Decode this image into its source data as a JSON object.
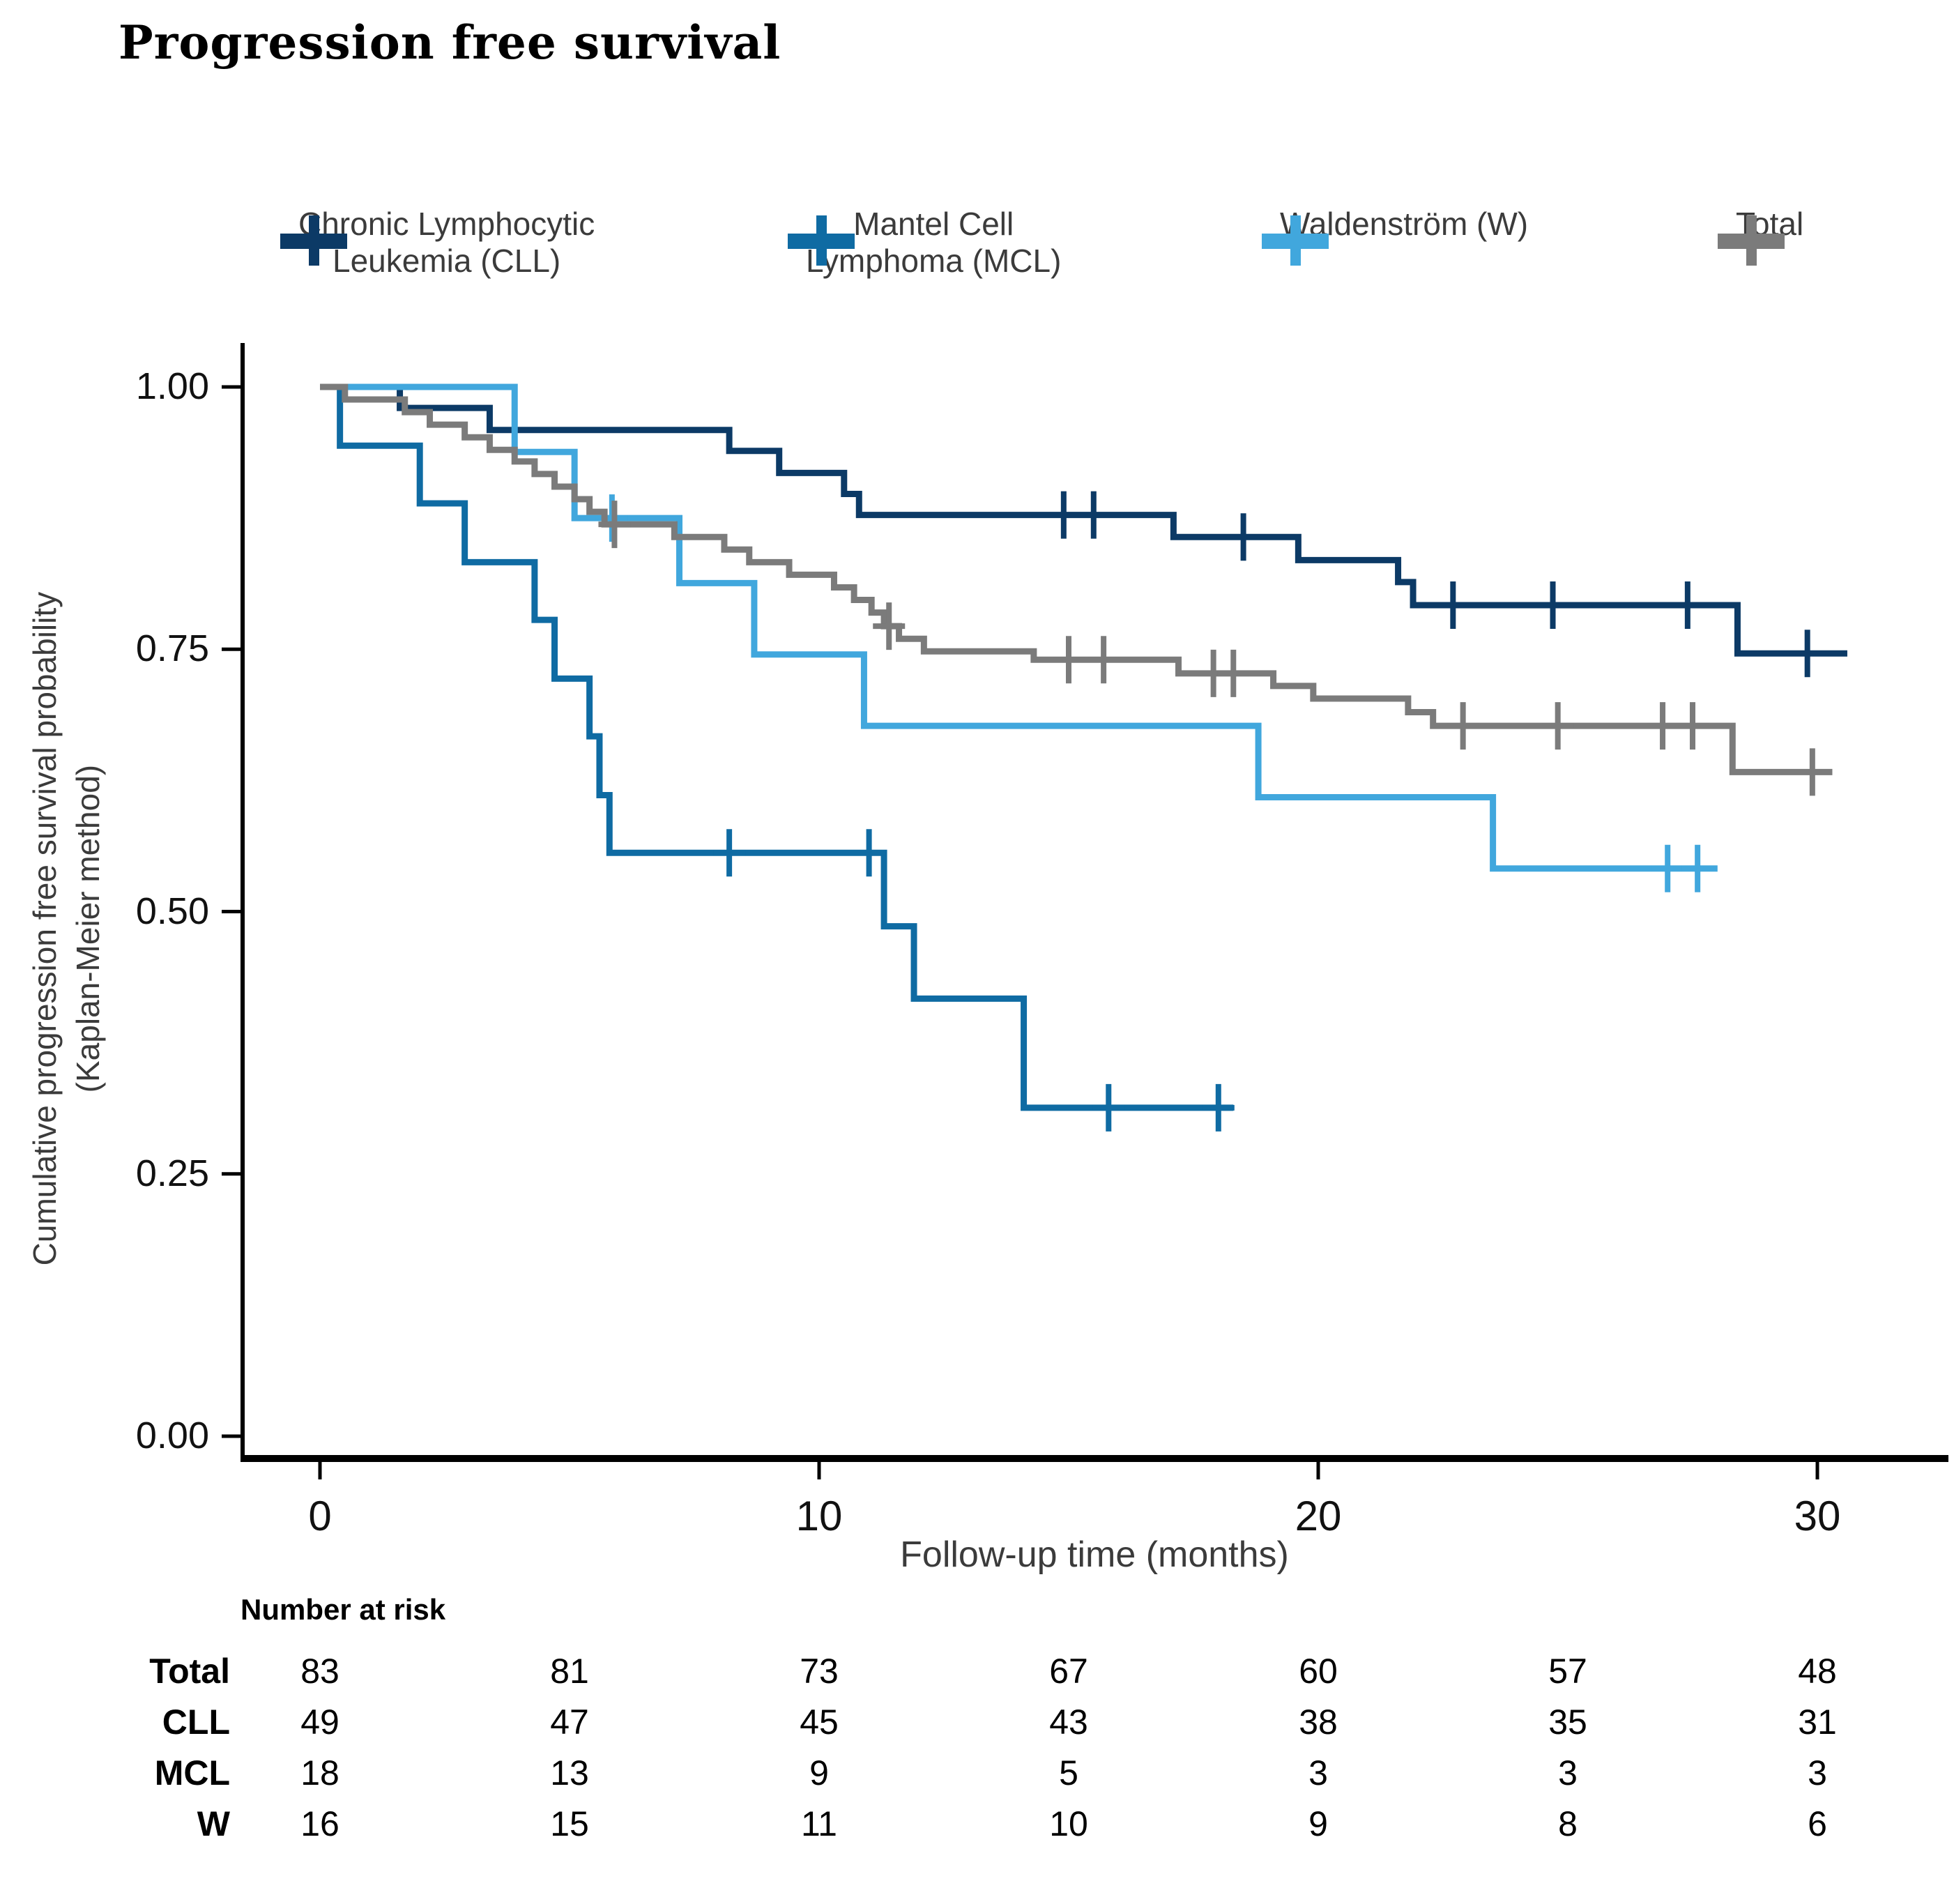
{
  "title": "Progression free survival",
  "legend": {
    "items": [
      {
        "id": "cll",
        "label": "Chronic Lymphocytic\nLeukemia (CLL)",
        "color": "#0c3a66"
      },
      {
        "id": "mcl",
        "label": "Mantel Cell\nLymphoma (MCL)",
        "color": "#0f6ba3"
      },
      {
        "id": "w",
        "label": "Waldenström (W)",
        "color": "#41a7dd"
      },
      {
        "id": "total",
        "label": "Total",
        "color": "#7b7b7b"
      }
    ]
  },
  "colors": {
    "cll": "#0c3a66",
    "mcl": "#0f6ba3",
    "w": "#41a7dd",
    "total": "#7b7b7b",
    "axis": "#000000"
  },
  "chart_data": {
    "type": "line",
    "variant": "kaplan-meier-step",
    "title": "Progression free survival",
    "xlabel": "Follow-up time (months)",
    "ylabel": "Cumulative progression free survival probability",
    "ylabel_line2": "(Kaplan-Meier method)",
    "xlim": [
      0,
      32.5
    ],
    "ylim": [
      0,
      1.0
    ],
    "x_ticks": [
      0,
      10,
      20,
      30
    ],
    "y_ticks": [
      "1.00",
      "0.75",
      "0.50",
      "0.25",
      "0.00"
    ],
    "y_tick_values": [
      1.0,
      0.75,
      0.5,
      0.25,
      0.0
    ],
    "grid": "off",
    "legend_position": "top",
    "series": [
      {
        "name": "Chronic Lymphocytic Leukemia (CLL)",
        "color": "#0c3a66",
        "steps": [
          [
            0,
            1.0
          ],
          [
            1.6,
            0.98
          ],
          [
            3.4,
            0.959
          ],
          [
            8.2,
            0.939
          ],
          [
            9.2,
            0.918
          ],
          [
            10.5,
            0.898
          ],
          [
            10.8,
            0.878
          ],
          [
            17.1,
            0.857
          ],
          [
            19.6,
            0.835
          ],
          [
            21.6,
            0.814
          ],
          [
            21.9,
            0.792
          ],
          [
            28.4,
            0.746
          ]
        ],
        "end_time": 30.6,
        "censors": [
          [
            14.9,
            0.878
          ],
          [
            15.5,
            0.878
          ],
          [
            18.5,
            0.857
          ],
          [
            22.7,
            0.792
          ],
          [
            24.7,
            0.792
          ],
          [
            27.4,
            0.792
          ],
          [
            29.8,
            0.746
          ]
        ]
      },
      {
        "name": "Mantel Cell Lymphoma (MCL)",
        "color": "#0f6ba3",
        "steps": [
          [
            0,
            1.0
          ],
          [
            0.4,
            0.944
          ],
          [
            2.0,
            0.889
          ],
          [
            2.9,
            0.833
          ],
          [
            4.3,
            0.778
          ],
          [
            4.7,
            0.722
          ],
          [
            5.4,
            0.667
          ],
          [
            5.6,
            0.611
          ],
          [
            5.8,
            0.556
          ],
          [
            11.3,
            0.486
          ],
          [
            11.9,
            0.417
          ],
          [
            14.1,
            0.313
          ]
        ],
        "end_time": 18.3,
        "censors": [
          [
            8.2,
            0.556
          ],
          [
            11.0,
            0.556
          ],
          [
            15.8,
            0.313
          ],
          [
            18.0,
            0.313
          ]
        ]
      },
      {
        "name": "Waldenström (W)",
        "color": "#41a7dd",
        "steps": [
          [
            0,
            1.0
          ],
          [
            3.9,
            0.938
          ],
          [
            5.1,
            0.875
          ],
          [
            7.2,
            0.813
          ],
          [
            8.7,
            0.745
          ],
          [
            10.9,
            0.677
          ],
          [
            18.8,
            0.609
          ],
          [
            23.5,
            0.541
          ]
        ],
        "end_time": 28.0,
        "censors": [
          [
            5.85,
            0.875
          ],
          [
            27.0,
            0.541
          ],
          [
            27.6,
            0.541
          ]
        ]
      },
      {
        "name": "Total",
        "color": "#7b7b7b",
        "steps": [
          [
            0,
            1.0
          ],
          [
            0.5,
            0.988
          ],
          [
            1.7,
            0.976
          ],
          [
            2.2,
            0.964
          ],
          [
            2.9,
            0.952
          ],
          [
            3.4,
            0.94
          ],
          [
            3.9,
            0.929
          ],
          [
            4.3,
            0.917
          ],
          [
            4.7,
            0.905
          ],
          [
            5.1,
            0.893
          ],
          [
            5.4,
            0.881
          ],
          [
            5.7,
            0.869
          ],
          [
            7.1,
            0.857
          ],
          [
            8.1,
            0.845
          ],
          [
            8.6,
            0.833
          ],
          [
            9.4,
            0.821
          ],
          [
            10.3,
            0.809
          ],
          [
            10.7,
            0.797
          ],
          [
            11.05,
            0.785
          ],
          [
            11.3,
            0.772
          ],
          [
            11.6,
            0.76
          ],
          [
            12.1,
            0.748
          ],
          [
            14.3,
            0.74
          ],
          [
            17.2,
            0.727
          ],
          [
            19.1,
            0.715
          ],
          [
            19.9,
            0.703
          ],
          [
            21.8,
            0.69
          ],
          [
            22.3,
            0.677
          ],
          [
            28.3,
            0.633
          ]
        ],
        "end_time": 30.3,
        "censors": [
          [
            5.9,
            0.869
          ],
          [
            11.4,
            0.772
          ],
          [
            15.0,
            0.74
          ],
          [
            15.7,
            0.74
          ],
          [
            17.9,
            0.727
          ],
          [
            18.3,
            0.727
          ],
          [
            22.9,
            0.677
          ],
          [
            24.8,
            0.677
          ],
          [
            26.9,
            0.677
          ],
          [
            27.5,
            0.677
          ],
          [
            29.9,
            0.633
          ]
        ]
      }
    ]
  },
  "risk_table": {
    "header": "Number at risk",
    "times": [
      0,
      5,
      10,
      15,
      20,
      25,
      30
    ],
    "rows": [
      {
        "label": "Total",
        "values": [
          83,
          81,
          73,
          67,
          60,
          57,
          48
        ]
      },
      {
        "label": "CLL",
        "values": [
          49,
          47,
          45,
          43,
          38,
          35,
          31
        ]
      },
      {
        "label": "MCL",
        "values": [
          18,
          13,
          9,
          5,
          3,
          3,
          3
        ]
      },
      {
        "label": "W",
        "values": [
          16,
          15,
          11,
          10,
          9,
          8,
          6
        ]
      }
    ]
  }
}
